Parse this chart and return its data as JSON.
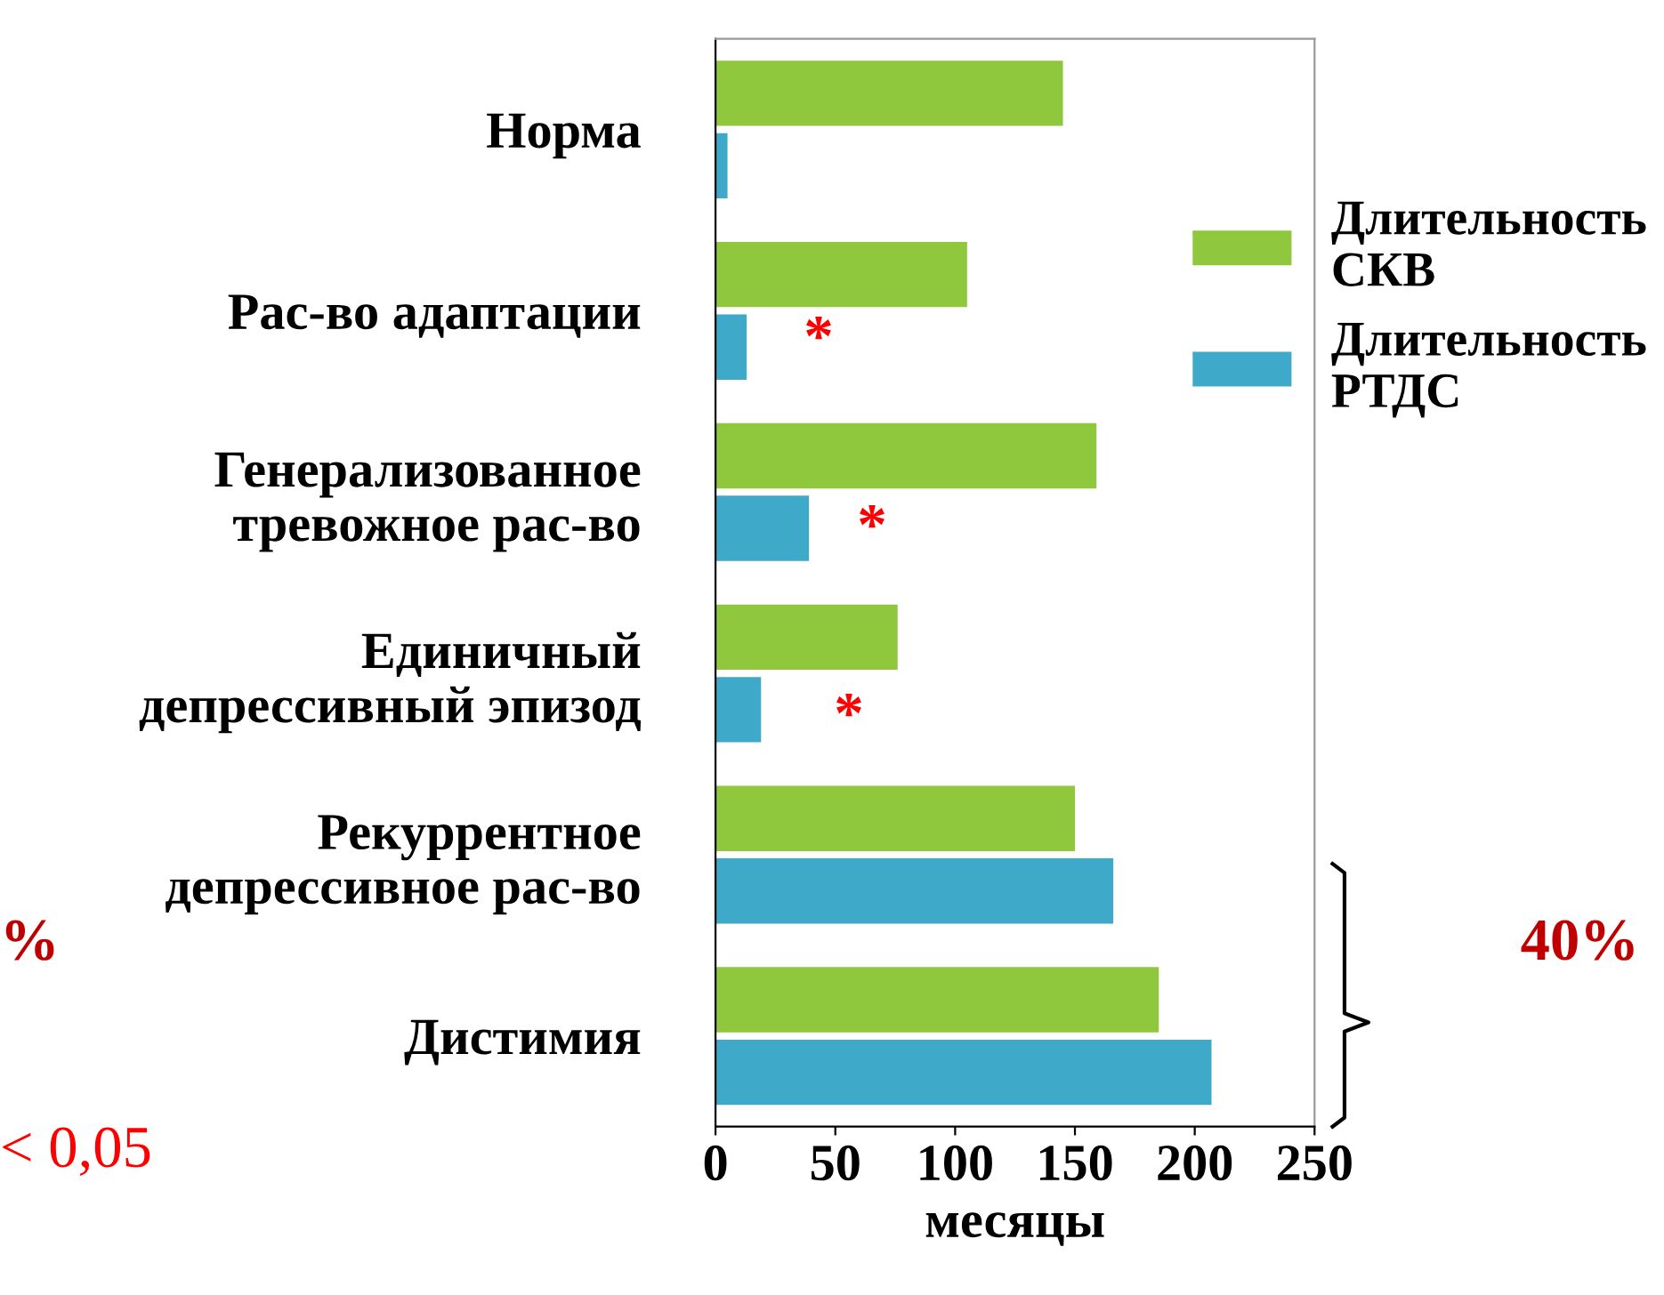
{
  "chart_data": {
    "type": "bar",
    "orientation": "horizontal",
    "categories": [
      "Норма",
      "Рас-во адаптации",
      "Генерализованное\nтревожное рас-во",
      "Единичный\nдепрессивный эпизод",
      "Рекуррентное\nдепрессивное рас-во",
      "Дистимия"
    ],
    "series": [
      {
        "name": "Длительность СКВ",
        "color": "#8fc83c",
        "values": [
          145,
          105,
          159,
          76,
          150,
          185
        ]
      },
      {
        "name": "Длительность РТДС",
        "color": "#3fa9c9",
        "values": [
          5,
          13,
          39,
          19,
          166,
          207
        ]
      }
    ],
    "xlabel": "месяцы",
    "xlim": [
      0,
      250
    ],
    "xticks": [
      0,
      50,
      100,
      150,
      200,
      250
    ],
    "grid": false,
    "legend": "top right",
    "annotations": [
      "*",
      "*",
      "*",
      "40%",
      "%",
      "< 0,05"
    ]
  }
}
